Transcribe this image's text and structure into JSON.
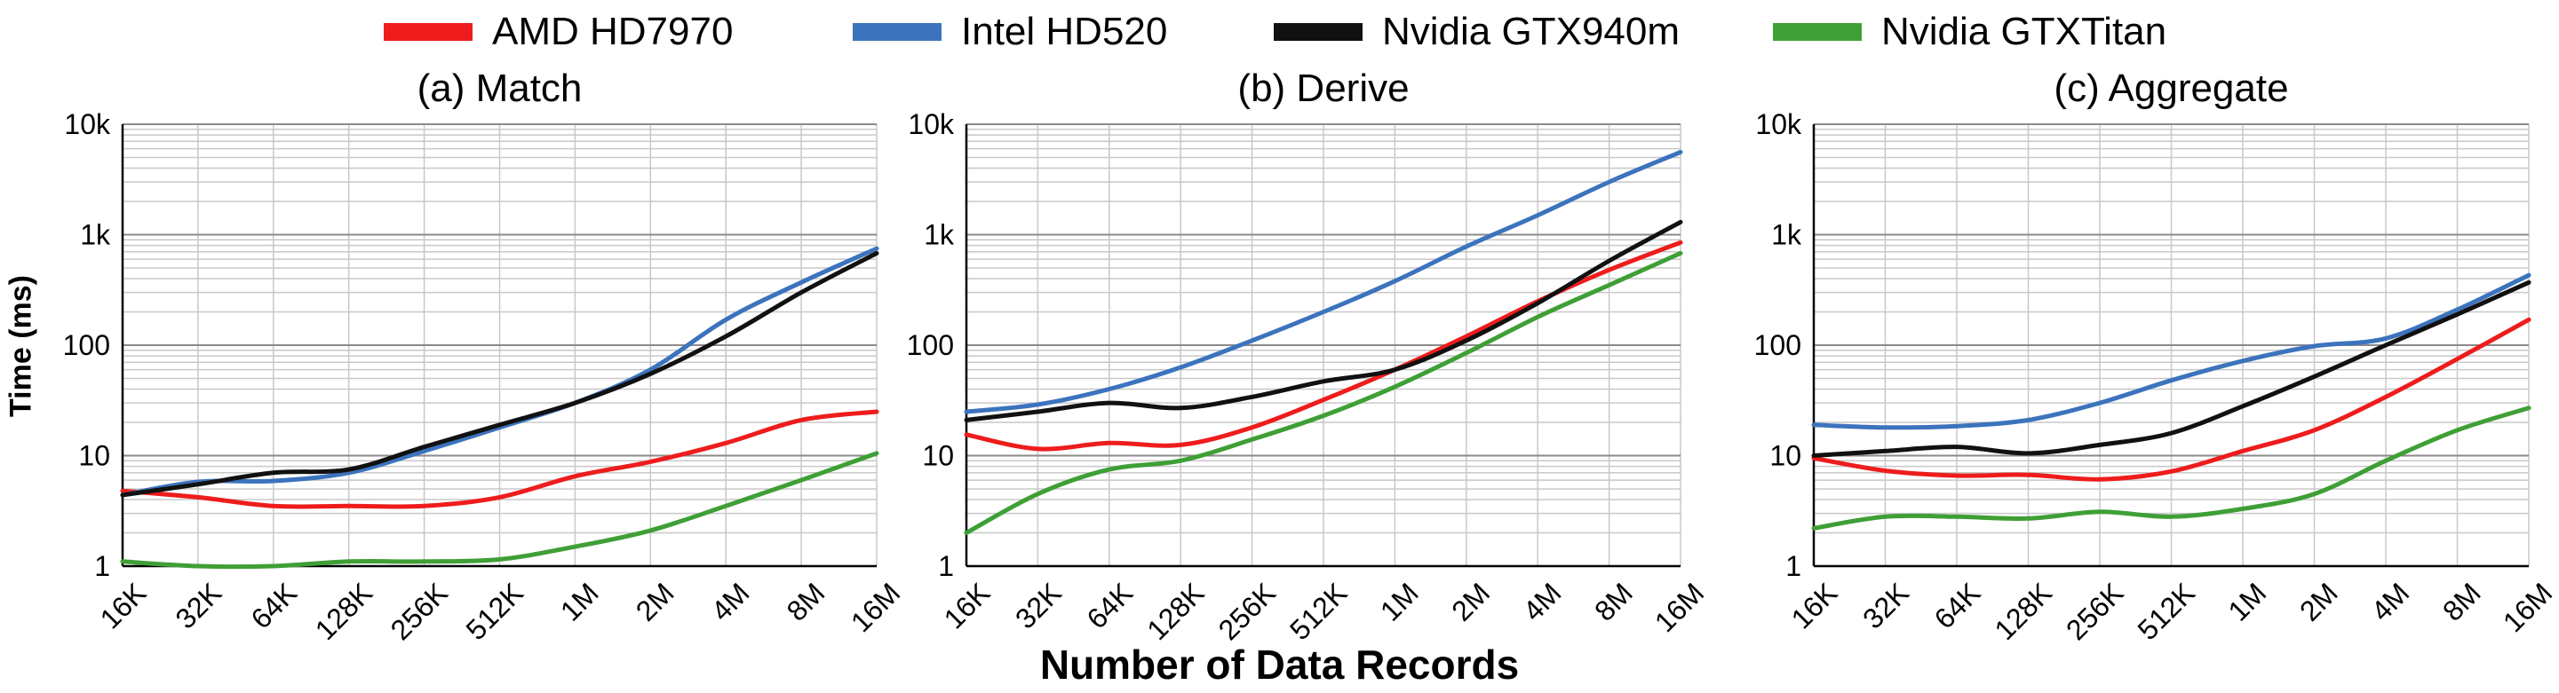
{
  "legend": [
    {
      "label": "AMD HD7970",
      "color": "#ee1c1c"
    },
    {
      "label": "Intel HD520",
      "color": "#3c73bd"
    },
    {
      "label": "Nvidia GTX940m",
      "color": "#111111"
    },
    {
      "label": "Nvidia GTXTitan",
      "color": "#3f9f36"
    }
  ],
  "xlabel": "Number of Data Records",
  "ylabel": "Time (ms)",
  "chart_data": [
    {
      "type": "line",
      "title": "(a) Match",
      "categories": [
        "16K",
        "32K",
        "64K",
        "128K",
        "256K",
        "512K",
        "1M",
        "2M",
        "4M",
        "8M",
        "16M"
      ],
      "yscale": "log",
      "ylim": [
        1,
        10000
      ],
      "yticks": [
        "1",
        "10",
        "100",
        "1k",
        "10k"
      ],
      "grid": true,
      "series": [
        {
          "name": "AMD HD7970",
          "values": [
            4.8,
            4.2,
            3.5,
            3.5,
            3.5,
            4.2,
            6.5,
            8.8,
            13,
            21,
            25
          ]
        },
        {
          "name": "Intel HD520",
          "values": [
            4.4,
            5.8,
            5.9,
            7.0,
            11,
            18,
            30,
            60,
            170,
            370,
            750
          ]
        },
        {
          "name": "Nvidia GTX940m",
          "values": [
            4.4,
            5.5,
            7.0,
            7.5,
            12,
            19,
            30,
            55,
            120,
            300,
            680
          ]
        },
        {
          "name": "Nvidia GTXTitan",
          "values": [
            1.1,
            1.0,
            1.0,
            1.1,
            1.1,
            1.15,
            1.5,
            2.1,
            3.5,
            6.0,
            10.5
          ]
        }
      ]
    },
    {
      "type": "line",
      "title": "(b) Derive",
      "categories": [
        "16K",
        "32K",
        "64K",
        "128K",
        "256K",
        "512K",
        "1M",
        "2M",
        "4M",
        "8M",
        "16M"
      ],
      "yscale": "log",
      "ylim": [
        1,
        10000
      ],
      "yticks": [
        "1",
        "10",
        "100",
        "1k",
        "10k"
      ],
      "grid": true,
      "series": [
        {
          "name": "AMD HD7970",
          "values": [
            15.5,
            11.5,
            13,
            12.5,
            18,
            32,
            60,
            120,
            250,
            480,
            850
          ]
        },
        {
          "name": "Intel HD520",
          "values": [
            25,
            29,
            40,
            63,
            110,
            200,
            380,
            780,
            1500,
            3000,
            5600
          ]
        },
        {
          "name": "Nvidia GTX940m",
          "values": [
            21,
            25,
            30,
            27,
            34,
            47,
            60,
            110,
            240,
            580,
            1300
          ]
        },
        {
          "name": "Nvidia GTXTitan",
          "values": [
            2.0,
            4.5,
            7.5,
            9.0,
            14,
            23,
            42,
            85,
            180,
            350,
            680
          ]
        }
      ]
    },
    {
      "type": "line",
      "title": "(c) Aggregate",
      "categories": [
        "16K",
        "32K",
        "64K",
        "128K",
        "256K",
        "512K",
        "1M",
        "2M",
        "4M",
        "8M",
        "16M"
      ],
      "yscale": "log",
      "ylim": [
        1,
        10000
      ],
      "yticks": [
        "1",
        "10",
        "100",
        "1k",
        "10k"
      ],
      "grid": true,
      "series": [
        {
          "name": "AMD HD7970",
          "values": [
            9.5,
            7.3,
            6.6,
            6.7,
            6.1,
            7.2,
            11,
            17,
            34,
            75,
            170
          ]
        },
        {
          "name": "Intel HD520",
          "values": [
            19,
            18,
            18.5,
            21,
            30,
            48,
            72,
            98,
            115,
            210,
            430
          ]
        },
        {
          "name": "Nvidia GTX940m",
          "values": [
            10,
            11,
            12,
            10.5,
            12.5,
            16,
            28,
            52,
            100,
            190,
            370
          ]
        },
        {
          "name": "Nvidia GTXTitan",
          "values": [
            2.2,
            2.8,
            2.8,
            2.7,
            3.1,
            2.8,
            3.3,
            4.5,
            9,
            17,
            27
          ]
        }
      ]
    }
  ]
}
